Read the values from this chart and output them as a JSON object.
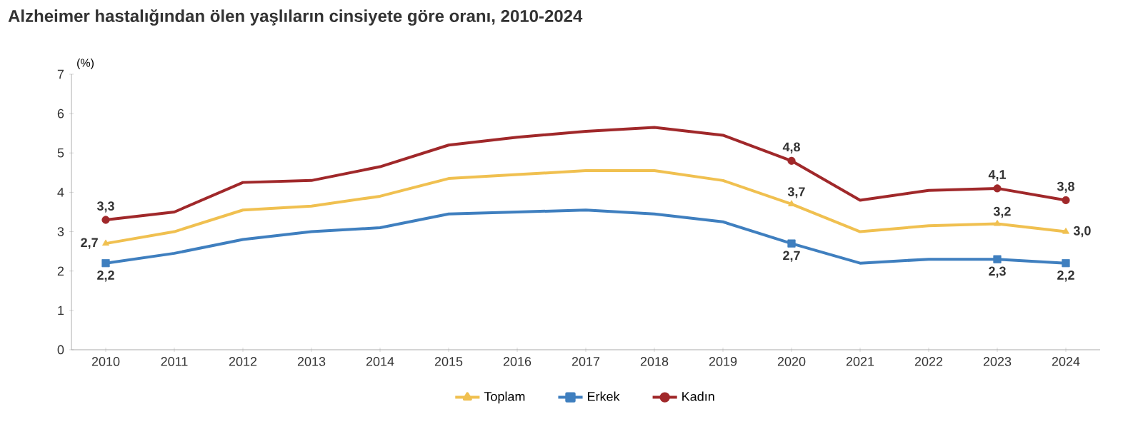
{
  "chart_data": {
    "type": "line",
    "title": "Alzheimer hastalığından ölen yaşlıların cinsiyete göre oranı, 2010-2024",
    "ylabel": "(%)",
    "categories": [
      "2010",
      "2011",
      "2012",
      "2013",
      "2014",
      "2015",
      "2016",
      "2017",
      "2018",
      "2019",
      "2020",
      "2021",
      "2022",
      "2023",
      "2024"
    ],
    "ylim": [
      0,
      7
    ],
    "yticks": [
      0,
      1,
      2,
      3,
      4,
      5,
      6,
      7
    ],
    "grid": false,
    "legend": "bottom",
    "series": [
      {
        "name": "Toplam",
        "color": "#f0c050",
        "values": [
          2.7,
          3.0,
          3.55,
          3.65,
          3.9,
          4.35,
          4.45,
          4.55,
          4.55,
          4.3,
          3.7,
          3.0,
          3.15,
          3.2,
          3.0
        ],
        "value_labels": [
          "2,7",
          null,
          null,
          null,
          null,
          null,
          null,
          null,
          null,
          null,
          "3,7",
          null,
          null,
          "3,2",
          "3,0"
        ]
      },
      {
        "name": "Erkek",
        "color": "#3f7fbf",
        "values": [
          2.2,
          2.45,
          2.8,
          3.0,
          3.1,
          3.45,
          3.5,
          3.55,
          3.45,
          3.25,
          2.7,
          2.2,
          2.3,
          2.3,
          2.2
        ],
        "value_labels": [
          "2,2",
          null,
          null,
          null,
          null,
          null,
          null,
          null,
          null,
          null,
          "2,7",
          null,
          null,
          "2,3",
          "2,2"
        ]
      },
      {
        "name": "Kadın",
        "color": "#a0282a",
        "values": [
          3.3,
          3.5,
          4.25,
          4.3,
          4.65,
          5.2,
          5.4,
          5.55,
          5.65,
          5.45,
          4.8,
          3.8,
          4.05,
          4.1,
          3.8
        ],
        "value_labels": [
          "3,3",
          null,
          null,
          null,
          null,
          null,
          null,
          null,
          null,
          null,
          "4,8",
          null,
          null,
          "4,1",
          "3,8"
        ]
      }
    ]
  }
}
